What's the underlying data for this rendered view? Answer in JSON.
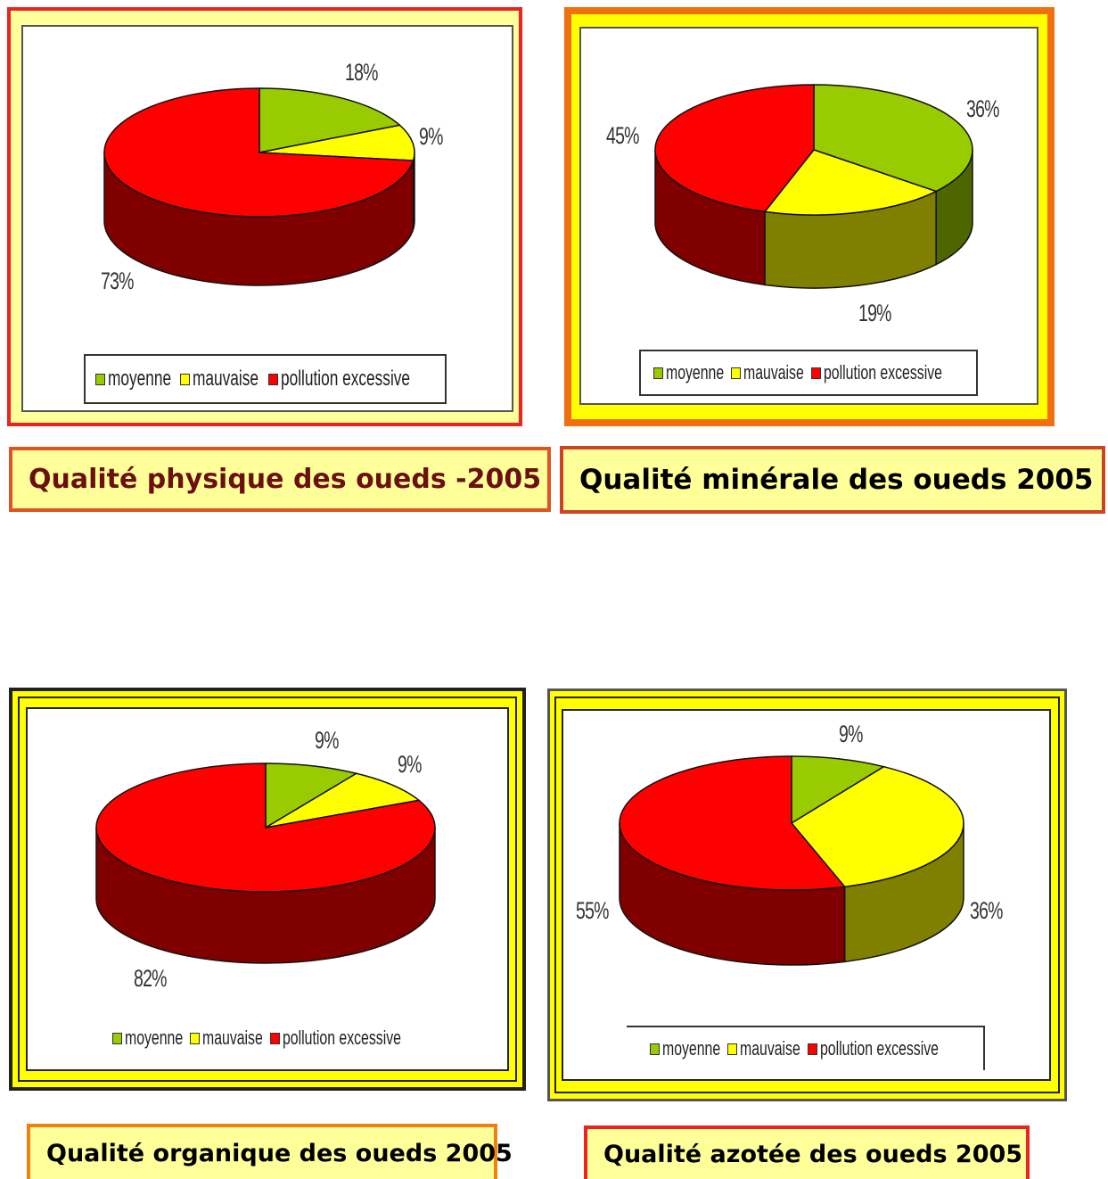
{
  "colors": {
    "moyenne": "#99cc00",
    "mauvaise": "#ffff00",
    "pollution": "#ff0000",
    "moyenne_side": "#4d6600",
    "mauvaise_side": "#808000",
    "pollution_side": "#800000"
  },
  "chart_data": [
    {
      "type": "pie",
      "title": "Qualité physique des oueds -2005",
      "categories": [
        "moyenne",
        "mauvaise",
        "pollution excessive"
      ],
      "values": [
        18,
        9,
        73
      ],
      "value_labels": [
        "18%",
        "9%",
        "73%"
      ],
      "legend": {
        "items": [
          "moyenne",
          "mauvaise",
          "pollution excessive"
        ],
        "placement": "bottom"
      }
    },
    {
      "type": "pie",
      "title": "Qualité minérale des oueds 2005",
      "categories": [
        "moyenne",
        "mauvaise",
        "pollution excessive"
      ],
      "values": [
        36,
        19,
        45
      ],
      "value_labels": [
        "36%",
        "19%",
        "45%"
      ],
      "legend": {
        "items": [
          "moyenne",
          "mauvaise",
          "pollution excessive"
        ],
        "placement": "bottom"
      }
    },
    {
      "type": "pie",
      "title": "Qualité organique des oueds 2005",
      "categories": [
        "moyenne",
        "mauvaise",
        "pollution excessive"
      ],
      "values": [
        9,
        9,
        82
      ],
      "value_labels": [
        "9%",
        "9%",
        "82%"
      ],
      "legend": {
        "items": [
          "moyenne",
          "mauvaise",
          "pollution excessive"
        ],
        "placement": "bottom"
      }
    },
    {
      "type": "pie",
      "title": "Qualité azotée des oueds 2005",
      "categories": [
        "moyenne",
        "mauvaise",
        "pollution excessive"
      ],
      "values": [
        9,
        36,
        55
      ],
      "value_labels": [
        "9%",
        "36%",
        "55%"
      ],
      "legend": {
        "items": [
          "moyenne",
          "mauvaise",
          "pollution excessive"
        ],
        "placement": "bottom"
      }
    }
  ]
}
